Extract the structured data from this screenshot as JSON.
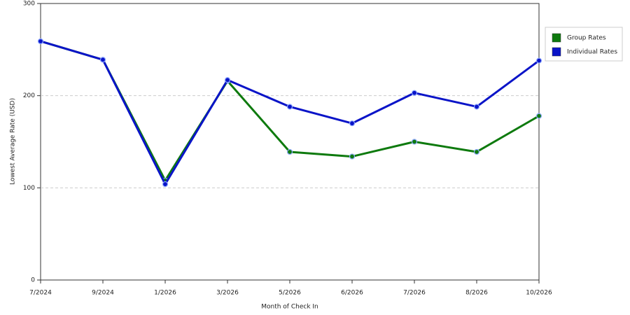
{
  "chart_data": {
    "type": "line",
    "x_label": "Month of Check In",
    "y_label": "Lowest Average Rate (USD)",
    "categories": [
      "7/2024",
      "9/2024",
      "1/2026",
      "3/2026",
      "5/2026",
      "6/2026",
      "7/2026",
      "8/2026",
      "10/2026"
    ],
    "series": [
      {
        "name": "Group Rates",
        "color": "#0e7a0e",
        "values": [
          259,
          239,
          108,
          216,
          139,
          134,
          150,
          139,
          178
        ]
      },
      {
        "name": "Individual Rates",
        "color": "#0a14c8",
        "values": [
          259,
          239,
          104,
          217,
          188,
          170,
          203,
          188,
          238
        ]
      }
    ],
    "ylim": [
      0,
      300
    ],
    "yticks": [
      0,
      100,
      200,
      300
    ],
    "grid": true,
    "legend": "right"
  }
}
